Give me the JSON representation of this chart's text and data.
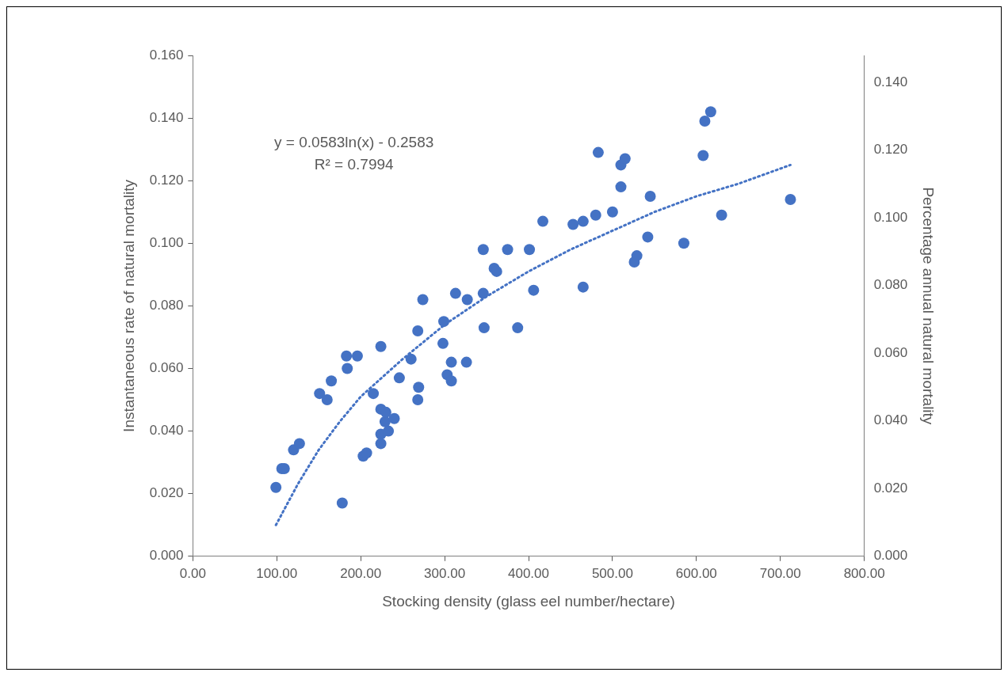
{
  "chart_data": {
    "type": "scatter",
    "xlabel": "Stocking density (glass eel number/hectare)",
    "ylabel": "Instantaneous rate of natural mortality",
    "y2label": "Percentage annual natural mortality",
    "annotations": [
      "y = 0.0583ln(x) - 0.2583",
      "R² = 0.7994"
    ],
    "xlim": [
      0,
      800
    ],
    "xticks": [
      {
        "value": 0,
        "label": "0.00"
      },
      {
        "value": 100,
        "label": "100.00"
      },
      {
        "value": 200,
        "label": "200.00"
      },
      {
        "value": 300,
        "label": "300.00"
      },
      {
        "value": 400,
        "label": "400.00"
      },
      {
        "value": 500,
        "label": "500.00"
      },
      {
        "value": 600,
        "label": "600.00"
      },
      {
        "value": 700,
        "label": "700.00"
      },
      {
        "value": 800,
        "label": "800.00"
      }
    ],
    "ylim": [
      0,
      0.16
    ],
    "yticks": [
      {
        "value": 0,
        "label": "0.000"
      },
      {
        "value": 0.02,
        "label": "0.020"
      },
      {
        "value": 0.04,
        "label": "0.040"
      },
      {
        "value": 0.06,
        "label": "0.060"
      },
      {
        "value": 0.08,
        "label": "0.080"
      },
      {
        "value": 0.1,
        "label": "0.100"
      },
      {
        "value": 0.12,
        "label": "0.120"
      },
      {
        "value": 0.14,
        "label": "0.140"
      },
      {
        "value": 0.16,
        "label": "0.160"
      }
    ],
    "y2lim": [
      0,
      0.148
    ],
    "y2ticks": [
      {
        "value": 0,
        "label": "0.000"
      },
      {
        "value": 0.02,
        "label": "0.020"
      },
      {
        "value": 0.04,
        "label": "0.040"
      },
      {
        "value": 0.06,
        "label": "0.060"
      },
      {
        "value": 0.08,
        "label": "0.080"
      },
      {
        "value": 0.1,
        "label": "0.100"
      },
      {
        "value": 0.12,
        "label": "0.120"
      },
      {
        "value": 0.14,
        "label": "0.140"
      }
    ],
    "grid": false,
    "legend": false,
    "marker": "circle",
    "series": [
      {
        "color": "#4472c4",
        "x": [
          99,
          106,
          109,
          120,
          127,
          151,
          160,
          165,
          178,
          183,
          184,
          196,
          203,
          207,
          215,
          224,
          224,
          224,
          224,
          229,
          230,
          233,
          240,
          246,
          260,
          268,
          269,
          268,
          274,
          298,
          299,
          303,
          308,
          308,
          313,
          326,
          327,
          346,
          346,
          347,
          359,
          362,
          375,
          387,
          401,
          406,
          417,
          453,
          465,
          465,
          480,
          483,
          500,
          510,
          510,
          515,
          526,
          529,
          542,
          545,
          585,
          608,
          610,
          617,
          630,
          712
        ],
        "values": [
          0.022,
          0.028,
          0.028,
          0.034,
          0.036,
          0.052,
          0.05,
          0.056,
          0.017,
          0.064,
          0.06,
          0.064,
          0.032,
          0.033,
          0.052,
          0.067,
          0.047,
          0.039,
          0.036,
          0.043,
          0.046,
          0.04,
          0.044,
          0.057,
          0.063,
          0.072,
          0.054,
          0.05,
          0.082,
          0.068,
          0.075,
          0.058,
          0.062,
          0.056,
          0.084,
          0.062,
          0.082,
          0.098,
          0.084,
          0.073,
          0.092,
          0.091,
          0.098,
          0.073,
          0.098,
          0.085,
          0.107,
          0.106,
          0.107,
          0.086,
          0.109,
          0.129,
          0.11,
          0.118,
          0.125,
          0.127,
          0.094,
          0.096,
          0.102,
          0.115,
          0.1,
          0.128,
          0.139,
          0.142,
          0.109,
          0.114
        ]
      },
      {
        "type": "line",
        "color": "#4472c4",
        "line_style": "dotted",
        "marker": "none",
        "x": [
          99,
          125,
          150,
          175,
          200,
          250,
          300,
          350,
          400,
          450,
          500,
          550,
          600,
          650,
          712
        ],
        "values": [
          0.01,
          0.023,
          0.034,
          0.043,
          0.051,
          0.063,
          0.074,
          0.083,
          0.091,
          0.098,
          0.104,
          0.11,
          0.115,
          0.119,
          0.125
        ]
      }
    ]
  }
}
